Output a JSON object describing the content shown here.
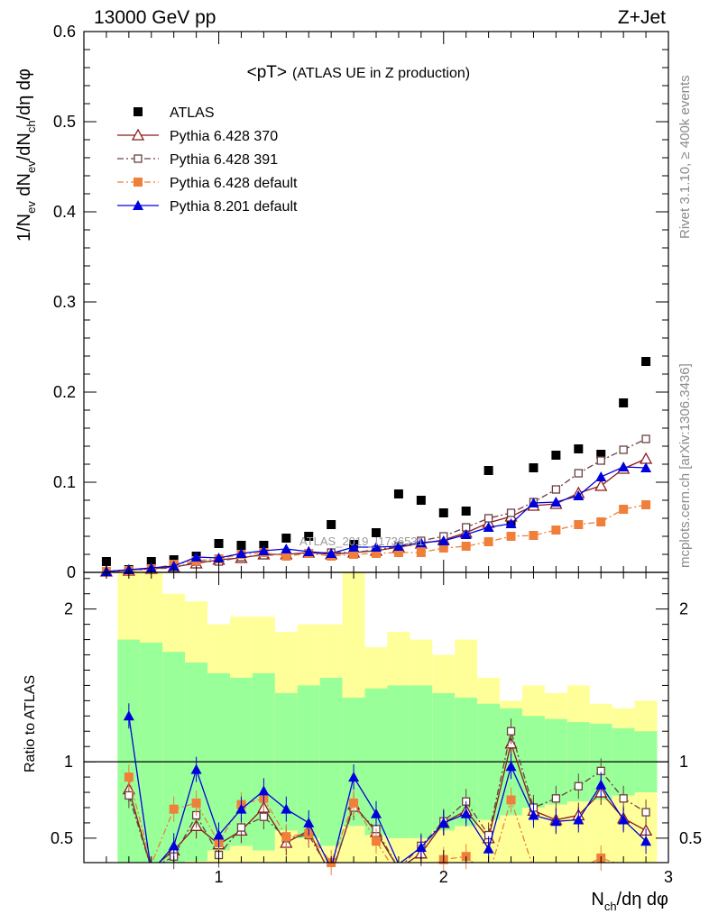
{
  "header": {
    "energy_label": "13000 GeV pp",
    "process_label": "Z+Jet"
  },
  "plot": {
    "title": "<pT>",
    "subtitle": "(ATLAS UE in Z production)",
    "watermark": "ATLAS_2019_I1736531",
    "side_label_top": "Rivet 3.1.10, ≥ 400k events",
    "side_label_bottom": "mcplots.cern.ch [arXiv:1306.3436]"
  },
  "legend": [
    {
      "name": "ATLAS",
      "color": "#000000",
      "marker": "filled-square",
      "line": "none"
    },
    {
      "name": "Pythia 6.428 370",
      "color": "#8b1a1a",
      "marker": "open-triangle",
      "line": "solid"
    },
    {
      "name": "Pythia 6.428 391",
      "color": "#6b4040",
      "marker": "open-square",
      "line": "dash-dot"
    },
    {
      "name": "Pythia 6.428 default",
      "color": "#f07f3a",
      "marker": "filled-square",
      "line": "dash-dot"
    },
    {
      "name": "Pythia 8.201 default",
      "color": "#0000dd",
      "marker": "filled-triangle",
      "line": "solid"
    }
  ],
  "chart_data": [
    {
      "type": "scatter",
      "panel": "main",
      "ylabel_main": "1/N",
      "ylabel_sub1": "ev",
      "ylabel_mid": " dN",
      "ylabel_sub2": "ev",
      "ylabel_mid2": "/dN",
      "ylabel_sub3": "ch",
      "ylabel_end": "/dη dφ",
      "xlim": [
        0.4,
        3.0
      ],
      "ylim": [
        0,
        0.6
      ],
      "yticks": [
        "0",
        "0.1",
        "0.2",
        "0.3",
        "0.4",
        "0.5",
        "0.6"
      ],
      "x": [
        0.5,
        0.6,
        0.7,
        0.8,
        0.9,
        1.0,
        1.1,
        1.2,
        1.3,
        1.4,
        1.5,
        1.6,
        1.7,
        1.8,
        1.9,
        2.0,
        2.1,
        2.2,
        2.3,
        2.4,
        2.5,
        2.6,
        2.7,
        2.8,
        2.9
      ],
      "series": [
        {
          "name": "ATLAS",
          "values": [
            0.012,
            0.003,
            0.012,
            0.014,
            0.018,
            0.032,
            0.03,
            0.03,
            0.038,
            0.04,
            0.053,
            0.031,
            0.044,
            0.087,
            0.08,
            0.066,
            0.068,
            0.113,
            0.056,
            0.116,
            0.13,
            0.137,
            0.131,
            0.188,
            0.234
          ]
        },
        {
          "name": "Pythia 6.428 370",
          "values": [
            0.001,
            0.002,
            0.004,
            0.006,
            0.01,
            0.014,
            0.016,
            0.02,
            0.02,
            0.022,
            0.02,
            0.022,
            0.024,
            0.028,
            0.032,
            0.036,
            0.044,
            0.055,
            0.062,
            0.074,
            0.076,
            0.088,
            0.096,
            0.115,
            0.126
          ]
        },
        {
          "name": "Pythia 6.428 391",
          "values": [
            0.001,
            0.002,
            0.004,
            0.005,
            0.012,
            0.012,
            0.017,
            0.019,
            0.02,
            0.021,
            0.022,
            0.022,
            0.025,
            0.029,
            0.035,
            0.04,
            0.05,
            0.06,
            0.066,
            0.078,
            0.092,
            0.11,
            0.124,
            0.136,
            0.148
          ]
        },
        {
          "name": "Pythia 6.428 default",
          "values": [
            0.001,
            0.002,
            0.004,
            0.009,
            0.013,
            0.015,
            0.02,
            0.022,
            0.018,
            0.021,
            0.018,
            0.02,
            0.021,
            0.022,
            0.022,
            0.027,
            0.029,
            0.034,
            0.04,
            0.041,
            0.047,
            0.053,
            0.056,
            0.07,
            0.075
          ]
        },
        {
          "name": "Pythia 8.201 default",
          "values": [
            0.001,
            0.003,
            0.005,
            0.007,
            0.017,
            0.016,
            0.021,
            0.024,
            0.026,
            0.023,
            0.021,
            0.028,
            0.028,
            0.029,
            0.033,
            0.035,
            0.042,
            0.05,
            0.054,
            0.077,
            0.078,
            0.085,
            0.106,
            0.117,
            0.116
          ]
        }
      ]
    },
    {
      "type": "scatter",
      "panel": "ratio",
      "ylabel": "Ratio to ATLAS",
      "xlabel_main": "N",
      "xlabel_sub": "ch",
      "xlabel_end": "/dη dφ",
      "xlim": [
        0.4,
        3.0
      ],
      "ylim": [
        0.34,
        2.24
      ],
      "xticks": [
        "1",
        "2",
        "3"
      ],
      "yticks": [
        "0.5",
        "1",
        "2"
      ],
      "x": [
        0.6,
        0.7,
        0.8,
        0.9,
        1.0,
        1.1,
        1.2,
        1.3,
        1.4,
        1.5,
        1.6,
        1.7,
        1.8,
        1.9,
        2.0,
        2.1,
        2.2,
        2.3,
        2.4,
        2.5,
        2.6,
        2.7,
        2.8,
        2.9
      ],
      "band_stat_upper": [
        1.8,
        1.78,
        1.72,
        1.65,
        1.58,
        1.55,
        1.58,
        1.45,
        1.5,
        1.55,
        1.42,
        1.48,
        1.5,
        1.5,
        1.45,
        1.42,
        1.38,
        1.35,
        1.3,
        1.28,
        1.26,
        1.25,
        1.22,
        1.2
      ],
      "band_total_upper": [
        2.3,
        2.25,
        2.1,
        2.05,
        1.9,
        1.95,
        1.95,
        1.85,
        1.9,
        1.9,
        2.35,
        1.75,
        1.85,
        1.8,
        1.7,
        1.8,
        1.55,
        1.4,
        1.5,
        1.45,
        1.5,
        1.38,
        1.35,
        1.4
      ],
      "series": [
        {
          "name": "Pythia 6.428 370",
          "values": [
            0.82,
            0.3,
            0.42,
            0.58,
            0.46,
            0.55,
            0.7,
            0.47,
            0.55,
            0.25,
            0.72,
            0.54,
            0.3,
            0.4,
            0.6,
            0.68,
            0.5,
            1.12,
            0.68,
            0.62,
            0.65,
            0.8,
            0.63,
            0.55
          ]
        },
        {
          "name": "Pythia 6.428 391",
          "values": [
            0.78,
            0.3,
            0.38,
            0.65,
            0.39,
            0.57,
            0.64,
            0.5,
            0.52,
            0.27,
            0.7,
            0.56,
            0.3,
            0.45,
            0.61,
            0.74,
            0.52,
            1.2,
            0.7,
            0.76,
            0.84,
            0.94,
            0.76,
            0.67
          ]
        },
        {
          "name": "Pythia 6.428 default",
          "values": [
            0.9,
            0.33,
            0.69,
            0.73,
            0.47,
            0.72,
            0.76,
            0.51,
            0.53,
            0.34,
            0.73,
            0.48,
            0.25,
            0.28,
            0.36,
            0.38,
            0.25,
            0.75,
            0.3,
            0.28,
            0.3,
            0.37,
            0.32,
            0.3
          ]
        },
        {
          "name": "Pythia 8.201 default",
          "values": [
            1.3,
            0.28,
            0.45,
            0.95,
            0.52,
            0.69,
            0.81,
            0.69,
            0.6,
            0.3,
            0.9,
            0.66,
            0.33,
            0.44,
            0.6,
            0.66,
            0.43,
            0.97,
            0.65,
            0.61,
            0.62,
            0.85,
            0.62,
            0.48
          ]
        }
      ]
    }
  ]
}
